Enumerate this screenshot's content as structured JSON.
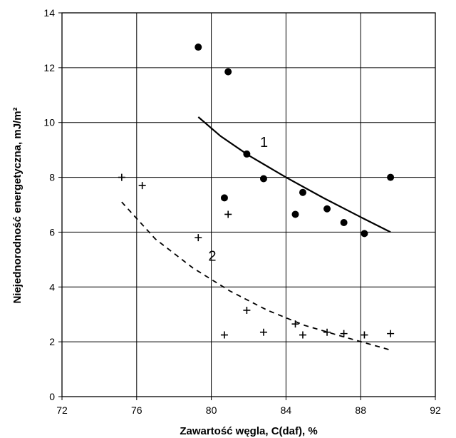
{
  "chart_data": {
    "type": "scatter",
    "title": "",
    "xlabel": "Zawartość węgla, C(daf), %",
    "ylabel": "Niejednorodność energetyczna, mJ/m²",
    "xlim": [
      72,
      92
    ],
    "ylim": [
      0,
      14
    ],
    "xticks": [
      "72",
      "76",
      "80",
      "84",
      "88",
      "92"
    ],
    "yticks": [
      "0",
      "2",
      "4",
      "6",
      "8",
      "10",
      "12",
      "14"
    ],
    "grid": true,
    "legend": "none",
    "series": [
      {
        "marker": "dot",
        "points": [
          [
            79.3,
            12.75
          ],
          [
            80.9,
            11.85
          ],
          [
            81.9,
            8.85
          ],
          [
            80.7,
            7.25
          ],
          [
            82.8,
            7.95
          ],
          [
            84.9,
            7.45
          ],
          [
            84.5,
            6.65
          ],
          [
            86.2,
            6.85
          ],
          [
            87.1,
            6.35
          ],
          [
            88.2,
            5.95
          ],
          [
            89.6,
            8.0
          ]
        ]
      },
      {
        "marker": "plus",
        "points": [
          [
            75.2,
            8.0
          ],
          [
            76.3,
            7.7
          ],
          [
            79.3,
            5.8
          ],
          [
            80.9,
            6.65
          ],
          [
            81.9,
            3.15
          ],
          [
            80.7,
            2.25
          ],
          [
            82.8,
            2.35
          ],
          [
            84.5,
            2.65
          ],
          [
            84.9,
            2.25
          ],
          [
            86.2,
            2.35
          ],
          [
            87.1,
            2.3
          ],
          [
            88.2,
            2.25
          ],
          [
            89.6,
            2.3
          ]
        ]
      }
    ],
    "fit_lines": [
      {
        "label": "1",
        "style": "solid",
        "points": [
          [
            79.3,
            10.2
          ],
          [
            80.5,
            9.5
          ],
          [
            82,
            8.8
          ],
          [
            84,
            8.0
          ],
          [
            86,
            7.25
          ],
          [
            88,
            6.55
          ],
          [
            89.6,
            6.0
          ]
        ]
      },
      {
        "label": "2",
        "style": "dashed",
        "points": [
          [
            75.2,
            7.1
          ],
          [
            77,
            5.75
          ],
          [
            79,
            4.7
          ],
          [
            81,
            3.85
          ],
          [
            83,
            3.15
          ],
          [
            85,
            2.6
          ],
          [
            87,
            2.2
          ],
          [
            89.6,
            1.7
          ]
        ]
      }
    ]
  }
}
